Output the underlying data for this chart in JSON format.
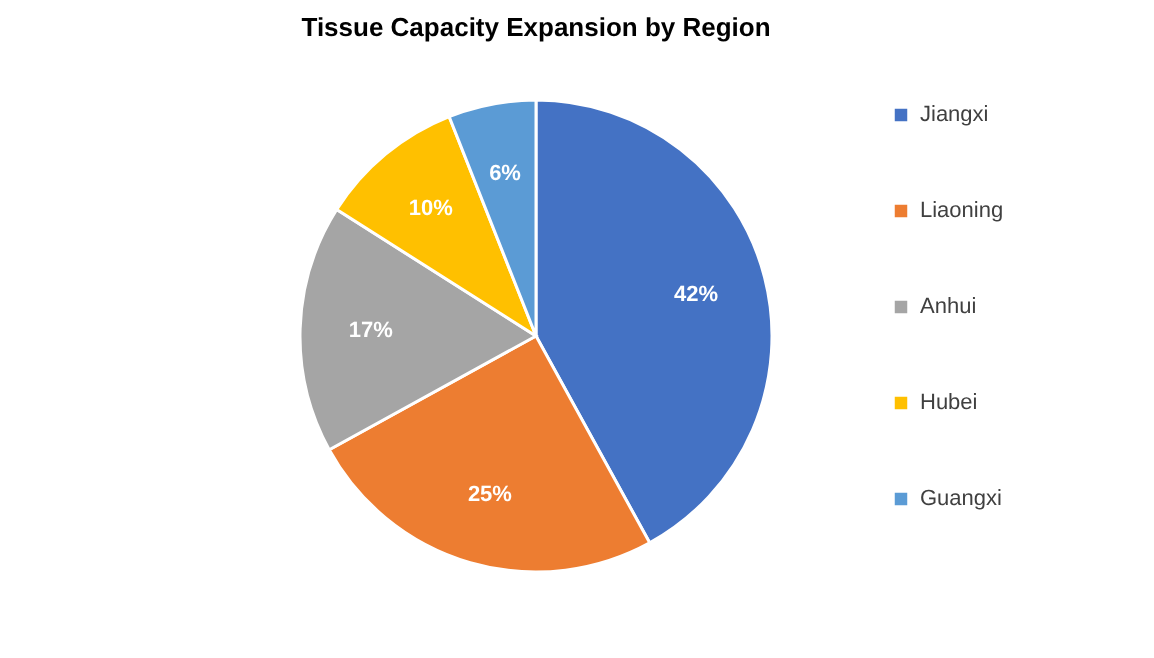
{
  "chart_data": {
    "type": "pie",
    "title": "Tissue Capacity Expansion by Region",
    "categories": [
      "Jiangxi",
      "Liaoning",
      "Anhui",
      "Hubei",
      "Guangxi"
    ],
    "values": [
      42,
      25,
      17,
      10,
      6
    ],
    "colors": [
      "#4472c4",
      "#ed7d31",
      "#a5a5a5",
      "#ffc000",
      "#5b9bd5"
    ],
    "value_labels": [
      "42%",
      "25%",
      "17%",
      "10%",
      "6%"
    ],
    "legend": "right"
  }
}
